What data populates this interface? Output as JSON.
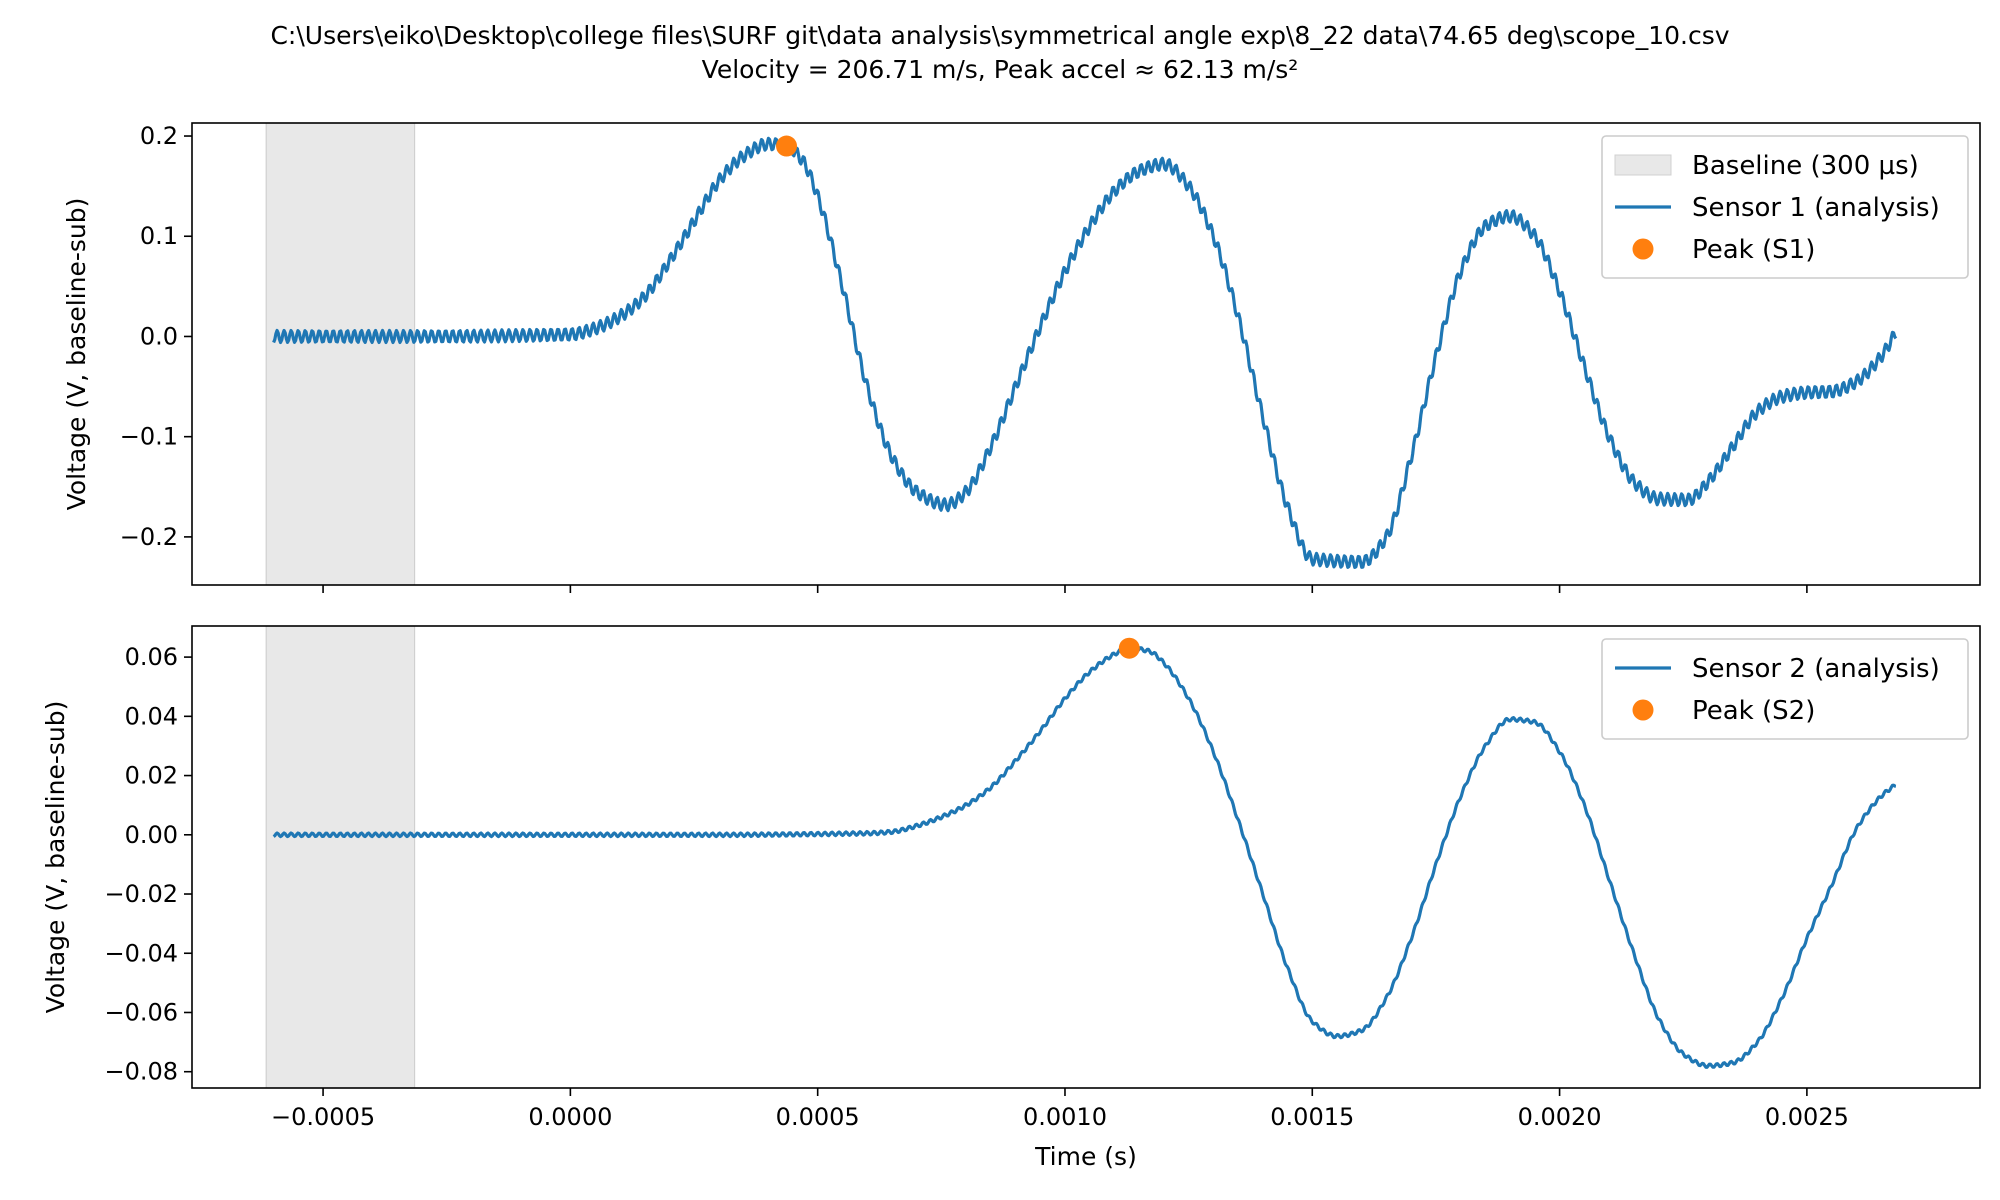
{
  "figure": {
    "title_line1": "C:\\Users\\eiko\\Desktop\\college files\\SURF git\\data analysis\\symmetrical angle exp\\8_22 data\\74.65  deg\\scope_10.csv",
    "title_line2": "Velocity = 206.71 m/s, Peak accel ≈ 62.13 m/s²"
  },
  "chart_data": [
    {
      "type": "line",
      "xlabel": "",
      "ylabel": "Voltage (V, baseline-sub)",
      "xlim": [
        -0.000765,
        0.00285
      ],
      "ylim": [
        -0.248,
        0.213
      ],
      "xticks": [
        -0.0005,
        0.0,
        0.0005,
        0.001,
        0.0015,
        0.002,
        0.0025
      ],
      "xtick_labels": [],
      "yticks": [
        -0.2,
        -0.1,
        0.0,
        0.1,
        0.2
      ],
      "ytick_labels": [
        "−0.2",
        "−0.1",
        "0.0",
        "0.1",
        "0.2"
      ],
      "grid": false,
      "baseline_span": {
        "x0": -0.000615,
        "x1": -0.000315,
        "color": "#e8e8e8",
        "label": "Baseline (300 µs)"
      },
      "series": [
        {
          "name": "Sensor 1 (analysis)",
          "color": "#1f77b4",
          "ripple_amplitude": 0.006,
          "x": [
            -0.0006,
            -0.0003,
            0.0,
            5e-05,
            0.0001,
            0.00015,
            0.0002,
            0.00025,
            0.0003,
            0.00035,
            0.0004,
            0.000437,
            0.00047,
            0.0005,
            0.00055,
            0.0006,
            0.00065,
            0.0007,
            0.00076,
            0.0008,
            0.00085,
            0.0009,
            0.00095,
            0.001,
            0.00105,
            0.0011,
            0.00115,
            0.0012,
            0.00125,
            0.0013,
            0.00135,
            0.0014,
            0.00145,
            0.0015,
            0.0016,
            0.00165,
            0.0017,
            0.00175,
            0.0018,
            0.00185,
            0.0019,
            0.00195,
            0.002,
            0.00205,
            0.0021,
            0.00215,
            0.0022,
            0.00226,
            0.0023,
            0.00235,
            0.0024,
            0.00245,
            0.0025,
            0.00255,
            0.0026,
            0.00265,
            0.00268
          ],
          "y": [
            0.0,
            0.0,
            0.002,
            0.008,
            0.02,
            0.04,
            0.075,
            0.115,
            0.155,
            0.18,
            0.192,
            0.19,
            0.175,
            0.14,
            0.05,
            -0.05,
            -0.12,
            -0.155,
            -0.168,
            -0.155,
            -0.11,
            -0.05,
            0.01,
            0.065,
            0.11,
            0.145,
            0.165,
            0.172,
            0.15,
            0.1,
            0.02,
            -0.08,
            -0.17,
            -0.222,
            -0.225,
            -0.2,
            -0.12,
            -0.02,
            0.065,
            0.11,
            0.12,
            0.1,
            0.045,
            -0.03,
            -0.1,
            -0.145,
            -0.162,
            -0.163,
            -0.145,
            -0.11,
            -0.075,
            -0.06,
            -0.056,
            -0.055,
            -0.045,
            -0.02,
            0.004
          ]
        }
      ],
      "peak": {
        "name": "Peak (S1)",
        "x": 0.000437,
        "y": 0.19,
        "color": "#ff7f0e"
      },
      "legend_position": "upper right"
    },
    {
      "type": "line",
      "xlabel": "Time (s)",
      "ylabel": "Voltage (V, baseline-sub)",
      "xlim": [
        -0.000765,
        0.00285
      ],
      "ylim": [
        -0.0855,
        0.0705
      ],
      "xticks": [
        -0.0005,
        0.0,
        0.0005,
        0.001,
        0.0015,
        0.002,
        0.0025
      ],
      "xtick_labels": [
        "−0.0005",
        "0.0000",
        "0.0005",
        "0.0010",
        "0.0015",
        "0.0020",
        "0.0025"
      ],
      "yticks": [
        -0.08,
        -0.06,
        -0.04,
        -0.02,
        0.0,
        0.02,
        0.04,
        0.06
      ],
      "ytick_labels": [
        "−0.08",
        "−0.06",
        "−0.04",
        "−0.02",
        "0.00",
        "0.02",
        "0.04",
        "0.06"
      ],
      "grid": false,
      "baseline_span": {
        "x0": -0.000615,
        "x1": -0.000315,
        "color": "#e8e8e8",
        "label": ""
      },
      "series": [
        {
          "name": "Sensor 2 (analysis)",
          "color": "#1f77b4",
          "ripple_amplitude": 0.0006,
          "x": [
            -0.0006,
            -0.0003,
            0.0,
            0.0003,
            0.0006,
            0.00065,
            0.0007,
            0.00075,
            0.0008,
            0.00085,
            0.0009,
            0.00095,
            0.001,
            0.00105,
            0.0011,
            0.00113,
            0.00117,
            0.0012,
            0.00125,
            0.0013,
            0.00135,
            0.0014,
            0.00145,
            0.0015,
            0.00155,
            0.0016,
            0.00165,
            0.0017,
            0.00175,
            0.0018,
            0.00185,
            0.0019,
            0.00195,
            0.002,
            0.00205,
            0.0021,
            0.00215,
            0.0022,
            0.00225,
            0.0023,
            0.00235,
            0.0024,
            0.00245,
            0.0025,
            0.00255,
            0.0026,
            0.00265,
            0.00268
          ],
          "y": [
            0.0,
            0.0,
            0.0,
            0.0,
            0.0005,
            0.001,
            0.003,
            0.006,
            0.01,
            0.016,
            0.025,
            0.035,
            0.046,
            0.055,
            0.061,
            0.063,
            0.062,
            0.058,
            0.046,
            0.028,
            0.005,
            -0.02,
            -0.045,
            -0.063,
            -0.068,
            -0.066,
            -0.055,
            -0.035,
            -0.01,
            0.013,
            0.03,
            0.039,
            0.038,
            0.028,
            0.01,
            -0.015,
            -0.04,
            -0.062,
            -0.074,
            -0.078,
            -0.077,
            -0.07,
            -0.055,
            -0.035,
            -0.017,
            0.002,
            0.013,
            0.017
          ]
        }
      ],
      "peak": {
        "name": "Peak (S2)",
        "x": 0.00113,
        "y": 0.063,
        "color": "#ff7f0e"
      },
      "legend_position": "upper right"
    }
  ]
}
